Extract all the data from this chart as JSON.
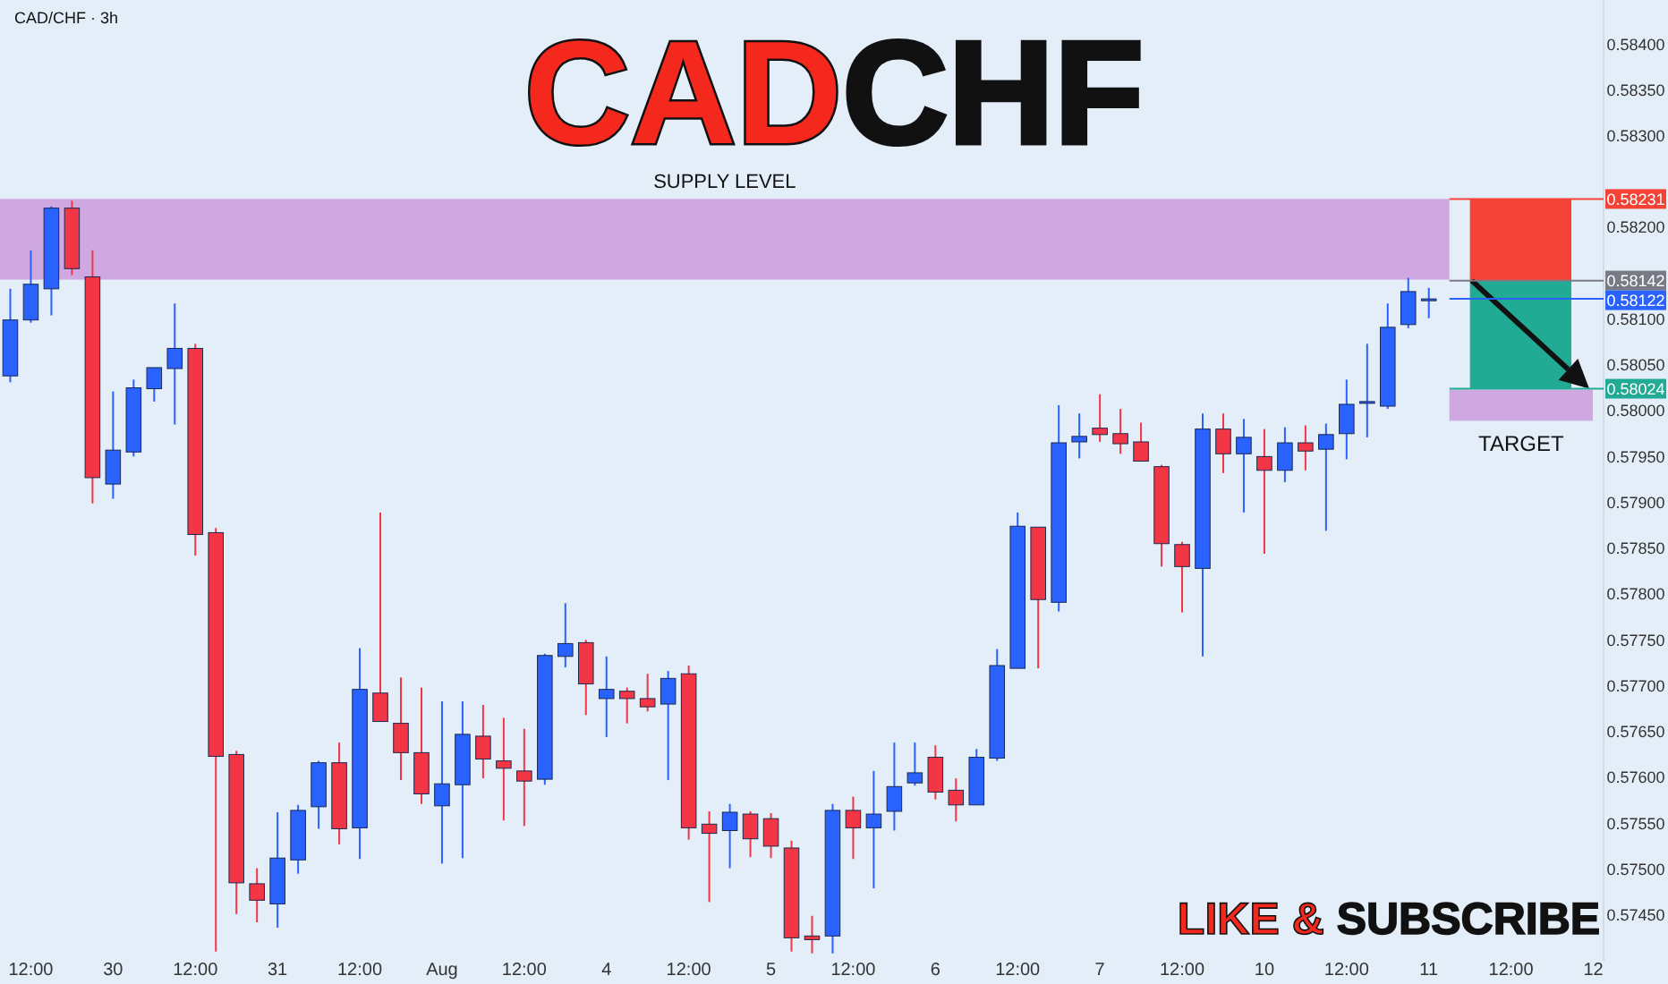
{
  "chart_data": {
    "type": "candlestick",
    "title": "CADCHF",
    "subtitle": "CAD/CHF · 3h",
    "categories": [
      null,
      "12:00",
      null,
      null,
      null,
      "30",
      null,
      null,
      null,
      "12:00",
      null,
      null,
      null,
      "31",
      null,
      null,
      null,
      "12:00",
      null,
      null,
      null,
      "Aug",
      null,
      null,
      null,
      "12:00",
      null,
      null,
      null,
      "4",
      null,
      null,
      null,
      "12:00",
      null,
      null,
      null,
      "5",
      null,
      null,
      null,
      "12:00",
      null,
      null,
      null,
      "6",
      null,
      null,
      null,
      "12:00",
      null,
      null,
      null,
      "7",
      null,
      null,
      null,
      "12:00",
      null,
      null,
      null,
      "10",
      null,
      null,
      null,
      "12:00",
      null,
      null,
      null,
      "11",
      null,
      null,
      null,
      "12:00",
      null,
      null,
      null,
      "12"
    ],
    "ohlc": [
      [
        0.58038,
        0.58133,
        0.58031,
        0.58099
      ],
      [
        0.58099,
        0.58175,
        0.58096,
        0.58138
      ],
      [
        0.58133,
        0.58223,
        0.58104,
        0.58221
      ],
      [
        0.58221,
        0.58229,
        0.58148,
        0.58155
      ],
      [
        0.58146,
        0.58175,
        0.57899,
        0.57927
      ],
      [
        0.5792,
        0.58021,
        0.57904,
        0.57957
      ],
      [
        0.57955,
        0.58034,
        0.5795,
        0.58025
      ],
      [
        0.58024,
        0.58047,
        0.5801,
        0.58047
      ],
      [
        0.58046,
        0.58117,
        0.57985,
        0.58068
      ],
      [
        0.58068,
        0.58073,
        0.57842,
        0.57865
      ],
      [
        0.57867,
        0.57872,
        0.5741,
        0.57623
      ],
      [
        0.57625,
        0.57629,
        0.57451,
        0.57485
      ],
      [
        0.57484,
        0.57501,
        0.57442,
        0.57466
      ],
      [
        0.57462,
        0.57562,
        0.57436,
        0.57512
      ],
      [
        0.5751,
        0.5757,
        0.57495,
        0.57564
      ],
      [
        0.57568,
        0.57618,
        0.57544,
        0.57616
      ],
      [
        0.57616,
        0.57638,
        0.57527,
        0.57544
      ],
      [
        0.57545,
        0.57741,
        0.57511,
        0.57696
      ],
      [
        0.57692,
        0.57889,
        0.57661,
        0.57661
      ],
      [
        0.57659,
        0.57709,
        0.57597,
        0.57627
      ],
      [
        0.57627,
        0.57698,
        0.57571,
        0.57582
      ],
      [
        0.57569,
        0.57683,
        0.57506,
        0.57593
      ],
      [
        0.57592,
        0.57683,
        0.57512,
        0.57647
      ],
      [
        0.57645,
        0.57679,
        0.57599,
        0.5762
      ],
      [
        0.57618,
        0.57665,
        0.57553,
        0.5761
      ],
      [
        0.57607,
        0.57653,
        0.57547,
        0.57596
      ],
      [
        0.57598,
        0.57735,
        0.57592,
        0.57733
      ],
      [
        0.57732,
        0.5779,
        0.5772,
        0.57746
      ],
      [
        0.57747,
        0.5775,
        0.57668,
        0.57702
      ],
      [
        0.57686,
        0.57732,
        0.57644,
        0.57696
      ],
      [
        0.57694,
        0.57698,
        0.57659,
        0.57686
      ],
      [
        0.57686,
        0.57713,
        0.57672,
        0.57677
      ],
      [
        0.5768,
        0.57716,
        0.57597,
        0.57708
      ],
      [
        0.57713,
        0.57722,
        0.57532,
        0.57545
      ],
      [
        0.57549,
        0.57563,
        0.57464,
        0.57539
      ],
      [
        0.57542,
        0.57571,
        0.57501,
        0.57562
      ],
      [
        0.5756,
        0.57563,
        0.57513,
        0.57533
      ],
      [
        0.57555,
        0.57561,
        0.57512,
        0.57525
      ],
      [
        0.57523,
        0.57531,
        0.5741,
        0.57425
      ],
      [
        0.57427,
        0.57449,
        0.57408,
        0.57423
      ],
      [
        0.57427,
        0.57571,
        0.57408,
        0.57564
      ],
      [
        0.57564,
        0.57579,
        0.57511,
        0.57545
      ],
      [
        0.57545,
        0.57607,
        0.57479,
        0.5756
      ],
      [
        0.57563,
        0.57638,
        0.57542,
        0.5759
      ],
      [
        0.57594,
        0.57638,
        0.57591,
        0.57605
      ],
      [
        0.57622,
        0.57635,
        0.57576,
        0.57584
      ],
      [
        0.57586,
        0.57599,
        0.57552,
        0.5757
      ],
      [
        0.5757,
        0.57631,
        0.5757,
        0.57622
      ],
      [
        0.57621,
        0.5774,
        0.57618,
        0.57722
      ],
      [
        0.57719,
        0.57889,
        0.57719,
        0.57874
      ],
      [
        0.57873,
        0.57873,
        0.57719,
        0.57794
      ],
      [
        0.57791,
        0.58006,
        0.57781,
        0.57965
      ],
      [
        0.57966,
        0.57997,
        0.57948,
        0.57972
      ],
      [
        0.57981,
        0.58018,
        0.57966,
        0.57974
      ],
      [
        0.57975,
        0.58002,
        0.57953,
        0.57964
      ],
      [
        0.57966,
        0.57987,
        0.57945,
        0.57945
      ],
      [
        0.57939,
        0.57941,
        0.5783,
        0.57855
      ],
      [
        0.57854,
        0.57857,
        0.5778,
        0.5783
      ],
      [
        0.57828,
        0.57997,
        0.57732,
        0.5798
      ],
      [
        0.5798,
        0.57997,
        0.57932,
        0.57953
      ],
      [
        0.57953,
        0.57991,
        0.57889,
        0.57971
      ],
      [
        0.5795,
        0.5798,
        0.57844,
        0.57935
      ],
      [
        0.57935,
        0.57982,
        0.57922,
        0.57965
      ],
      [
        0.57965,
        0.57984,
        0.57935,
        0.57956
      ],
      [
        0.57958,
        0.57986,
        0.57869,
        0.57974
      ],
      [
        0.57975,
        0.58034,
        0.57947,
        0.58007
      ],
      [
        0.58009,
        0.58073,
        0.57971,
        0.5801
      ],
      [
        0.58005,
        0.58117,
        0.58002,
        0.58091
      ],
      [
        0.58094,
        0.58145,
        0.5809,
        0.5813
      ],
      [
        0.5812,
        0.58134,
        0.58101,
        0.58122
      ],
      null,
      null,
      null,
      null,
      null,
      null,
      null,
      null
    ],
    "colors": [
      "#2962ff",
      "#2962ff",
      "#2962ff",
      "#f23645",
      "#f23645",
      "#2962ff",
      "#2962ff",
      "#2962ff",
      "#2962ff",
      "#f23645",
      "#f23645",
      "#f23645",
      "#f23645",
      "#2962ff",
      "#2962ff",
      "#2962ff",
      "#f23645",
      "#2962ff",
      "#f23645",
      "#f23645",
      "#f23645",
      "#2962ff",
      "#2962ff",
      "#f23645",
      "#f23645",
      "#f23645",
      "#2962ff",
      "#2962ff",
      "#f23645",
      "#2962ff",
      "#f23645",
      "#f23645",
      "#2962ff",
      "#f23645",
      "#f23645",
      "#2962ff",
      "#f23645",
      "#f23645",
      "#f23645",
      "#f23645",
      "#2962ff",
      "#f23645",
      "#2962ff",
      "#2962ff",
      "#2962ff",
      "#f23645",
      "#f23645",
      "#2962ff",
      "#2962ff",
      "#2962ff",
      "#f23645",
      "#2962ff",
      "#2962ff",
      "#f23645",
      "#f23645",
      "#f23645",
      "#f23645",
      "#f23645",
      "#2962ff",
      "#f23645",
      "#2962ff",
      "#f23645",
      "#2962ff",
      "#f23645",
      "#2962ff",
      "#2962ff",
      "#2962ff",
      "#2962ff",
      "#2962ff",
      "#2962ff",
      null,
      null,
      null,
      null,
      null,
      null,
      null,
      null
    ],
    "ylim": [
      0.574,
      0.5845
    ],
    "yticks": [
      {
        "value": 0.5745,
        "label": "0.57450"
      },
      {
        "value": 0.575,
        "label": "0.57500"
      },
      {
        "value": 0.5755,
        "label": "0.57550"
      },
      {
        "value": 0.576,
        "label": "0.57600"
      },
      {
        "value": 0.5765,
        "label": "0.57650"
      },
      {
        "value": 0.577,
        "label": "0.57700"
      },
      {
        "value": 0.5775,
        "label": "0.57750"
      },
      {
        "value": 0.578,
        "label": "0.57800"
      },
      {
        "value": 0.5785,
        "label": "0.57850"
      },
      {
        "value": 0.579,
        "label": "0.57900"
      },
      {
        "value": 0.5795,
        "label": "0.57950"
      },
      {
        "value": 0.58,
        "label": "0.58000"
      },
      {
        "value": 0.5805,
        "label": "0.58050"
      },
      {
        "value": 0.581,
        "label": "0.58100"
      },
      {
        "value": 0.582,
        "label": "0.58200"
      },
      {
        "value": 0.583,
        "label": "0.58300"
      },
      {
        "value": 0.5835,
        "label": "0.58350"
      },
      {
        "value": 0.584,
        "label": "0.58400"
      }
    ],
    "bands": [
      {
        "axis": "y",
        "from": 0.58143,
        "to": 0.58231,
        "label": "SUPPLY LEVEL",
        "color": "#cfa8e2"
      },
      {
        "axis": "y",
        "from": 0.57989,
        "to": 0.58023,
        "label": "TARGET",
        "color": "#cfa8e2"
      },
      {
        "axis": "y",
        "from": 0.58142,
        "to": 0.58231,
        "color": "#f44336"
      },
      {
        "axis": "y",
        "from": 0.58024,
        "to": 0.58142,
        "color": "#22ab94"
      }
    ],
    "ref_lines": [
      {
        "axis": "y",
        "value": 0.58231,
        "label": "0.58231",
        "color": "#f44336"
      },
      {
        "axis": "y",
        "value": 0.58142,
        "label": "0.58142",
        "color": "#787b86"
      },
      {
        "axis": "y",
        "value": 0.58122,
        "label": "0.58122",
        "color": "#2962ff"
      },
      {
        "axis": "y",
        "value": 0.58024,
        "label": "0.58024",
        "color": "#22ab94"
      }
    ],
    "annotations": [
      "LIKE & SUBSCRIBE"
    ],
    "grid": false
  }
}
